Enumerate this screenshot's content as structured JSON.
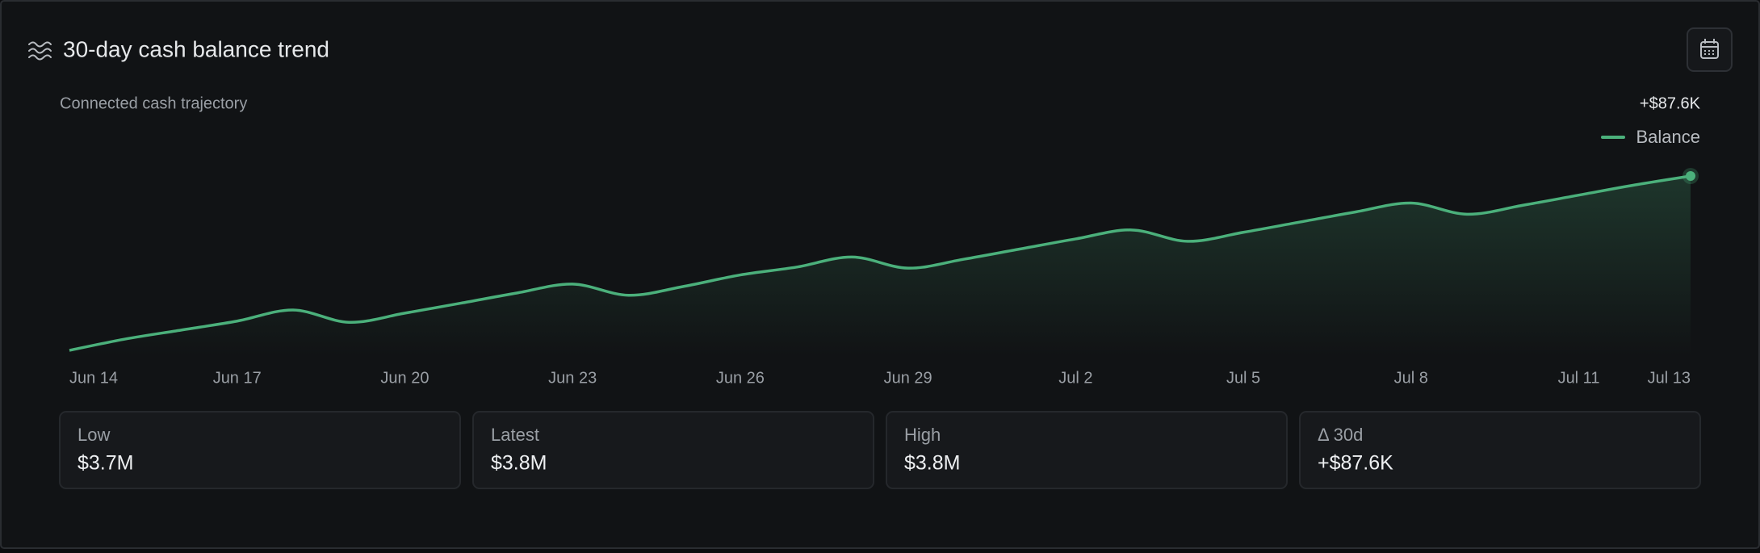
{
  "header": {
    "title": "30-day cash balance trend"
  },
  "chart_data": {
    "type": "line",
    "subtitle": "Connected cash trajectory",
    "annotation": "+$87.6K",
    "categories": [
      "Jun 14",
      null,
      null,
      "Jun 17",
      null,
      null,
      "Jun 20",
      null,
      null,
      "Jun 23",
      null,
      null,
      "Jun 26",
      null,
      null,
      "Jun 29",
      null,
      null,
      "Jul 2",
      null,
      null,
      "Jul 5",
      null,
      null,
      "Jul 8",
      null,
      null,
      "Jul 11",
      null,
      "Jul 13"
    ],
    "series": [
      {
        "name": "Balance",
        "color": "#4bb07b",
        "values": [
          3712400,
          3718100,
          3722600,
          3727100,
          3732700,
          3726500,
          3731100,
          3736100,
          3741200,
          3745700,
          3740100,
          3744600,
          3750300,
          3754200,
          3759300,
          3753700,
          3758200,
          3763300,
          3768400,
          3772900,
          3767200,
          3771700,
          3776800,
          3781900,
          3786400,
          3780800,
          3785300,
          3790400,
          3795500,
          3800000
        ]
      }
    ],
    "legend": "top-right",
    "grid": false
  },
  "stats": [
    {
      "label": "Low",
      "value": "$3.7M"
    },
    {
      "label": "Latest",
      "value": "$3.8M"
    },
    {
      "label": "High",
      "value": "$3.8M"
    },
    {
      "label": "Δ 30d",
      "value": "+$87.6K"
    }
  ]
}
